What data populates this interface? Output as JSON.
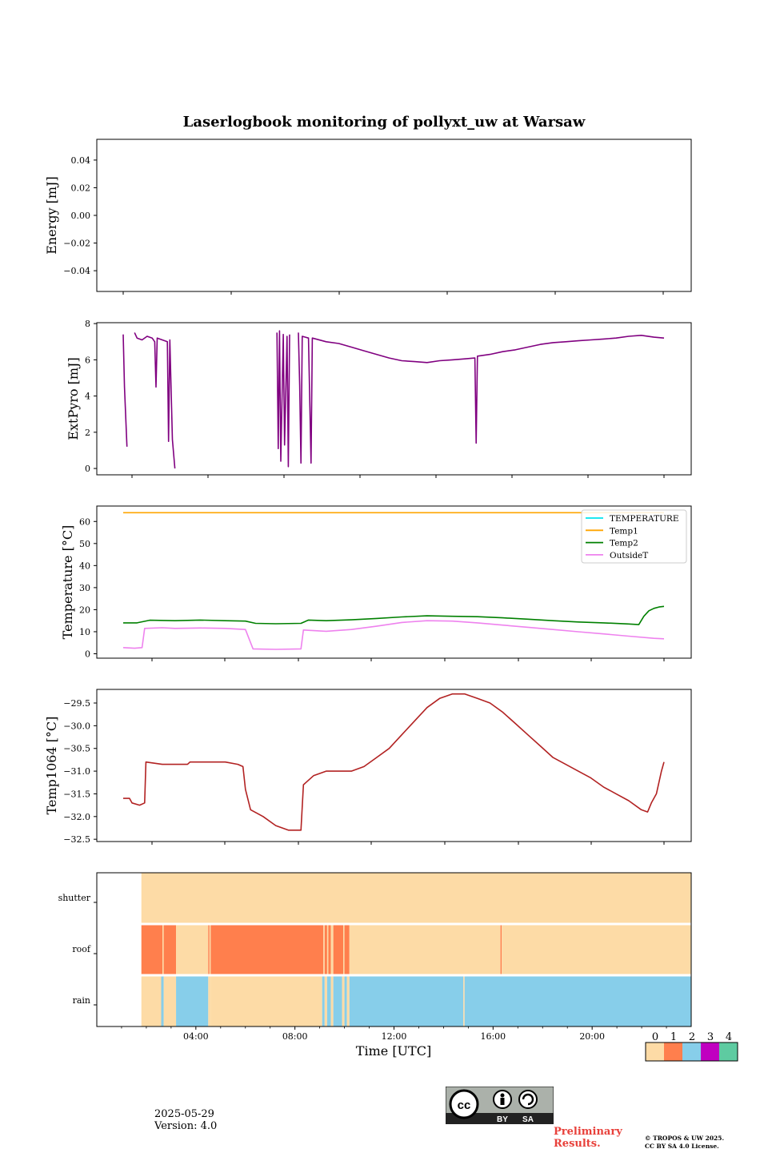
{
  "title": "Laserlogbook monitoring of pollyxt_uw at Warsaw",
  "xlabel": "Time [UTC]",
  "footer": {
    "date": "2025-05-29",
    "version": "Version: 4.0",
    "preliminary": "Preliminary\nResults.",
    "copyright_line1": "© TROPOS & UW 2025.",
    "copyright_line2": "CC BY SA 4.0 License.",
    "license_badge": {
      "left": "BY",
      "right": "SA"
    }
  },
  "chart_data": [
    {
      "id": "energy",
      "type": "line",
      "ylabel": "Energy [mJ]",
      "ylim": [
        -0.055,
        0.055
      ],
      "yticks": [
        0.04,
        0.02,
        0.0,
        -0.02,
        -0.04
      ],
      "ytick_labels": [
        "0.04",
        "0.02",
        "0.00",
        "−0.02",
        "−0.04"
      ],
      "series": []
    },
    {
      "id": "extpyro",
      "type": "line",
      "ylabel": "ExtPyro [mJ]",
      "ylim": [
        -0.35,
        8.05
      ],
      "yticks": [
        0,
        2,
        4,
        6,
        8
      ],
      "ytick_labels": [
        "0",
        "2",
        "4",
        "6",
        "8"
      ],
      "series": [
        {
          "color": "#800080",
          "points": [
            [
              0.95,
              7.4
            ],
            [
              1.0,
              4.5
            ],
            [
              1.1,
              1.2
            ],
            [
              null,
              null
            ],
            [
              1.4,
              7.5
            ],
            [
              1.5,
              7.2
            ],
            [
              1.7,
              7.1
            ],
            [
              1.9,
              7.3
            ],
            [
              2.1,
              7.2
            ],
            [
              2.2,
              7.0
            ],
            [
              2.25,
              4.5
            ],
            [
              2.3,
              7.2
            ],
            [
              2.5,
              7.1
            ],
            [
              2.7,
              7.0
            ],
            [
              2.75,
              1.5
            ],
            [
              2.8,
              7.1
            ],
            [
              2.9,
              1.6
            ],
            [
              3.0,
              0.0
            ],
            [
              null,
              null
            ],
            [
              7.05,
              7.5
            ],
            [
              7.1,
              1.1
            ],
            [
              7.15,
              7.6
            ],
            [
              7.2,
              0.4
            ],
            [
              7.3,
              7.4
            ],
            [
              7.35,
              1.3
            ],
            [
              7.45,
              7.3
            ],
            [
              7.5,
              0.1
            ],
            [
              7.55,
              7.4
            ],
            [
              null,
              null
            ],
            [
              7.9,
              7.5
            ],
            [
              7.95,
              4.6
            ],
            [
              8.0,
              0.3
            ],
            [
              8.05,
              7.3
            ],
            [
              8.3,
              7.2
            ],
            [
              8.4,
              0.3
            ],
            [
              8.45,
              7.2
            ],
            [
              9.0,
              7.0
            ],
            [
              9.5,
              6.9
            ],
            [
              10.0,
              6.7
            ],
            [
              10.5,
              6.5
            ],
            [
              11.0,
              6.3
            ],
            [
              11.5,
              6.1
            ],
            [
              12.0,
              5.95
            ],
            [
              12.5,
              5.9
            ],
            [
              13.0,
              5.85
            ],
            [
              13.5,
              5.95
            ],
            [
              14.0,
              6.0
            ],
            [
              14.5,
              6.05
            ],
            [
              14.9,
              6.1
            ],
            [
              14.95,
              1.4
            ],
            [
              15.0,
              6.2
            ],
            [
              15.5,
              6.3
            ],
            [
              16.0,
              6.45
            ],
            [
              16.5,
              6.55
            ],
            [
              17.0,
              6.7
            ],
            [
              17.5,
              6.85
            ],
            [
              18.0,
              6.95
            ],
            [
              18.5,
              7.0
            ],
            [
              19.0,
              7.05
            ],
            [
              19.5,
              7.1
            ],
            [
              20.0,
              7.15
            ],
            [
              20.5,
              7.2
            ],
            [
              21.0,
              7.3
            ],
            [
              21.5,
              7.35
            ],
            [
              22.0,
              7.25
            ],
            [
              22.4,
              7.2
            ]
          ]
        }
      ]
    },
    {
      "id": "temperature",
      "type": "line",
      "ylabel": "Temperature [°C]",
      "ylim": [
        -2,
        67
      ],
      "yticks": [
        0,
        10,
        20,
        30,
        40,
        50,
        60
      ],
      "ytick_labels": [
        "0",
        "10",
        "20",
        "30",
        "40",
        "50",
        "60"
      ],
      "legend": {
        "position": "top-right",
        "entries": [
          "TEMPERATURE",
          "Temp1",
          "Temp2",
          "OutsideT"
        ]
      },
      "series": [
        {
          "name": "TEMPERATURE",
          "color": "#00e5ee",
          "points": []
        },
        {
          "name": "Temp1",
          "color": "#ffa500",
          "points": [
            [
              0.95,
              64
            ],
            [
              22.4,
              64
            ]
          ]
        },
        {
          "name": "Temp2",
          "color": "#008000",
          "points": [
            [
              0.95,
              14.0
            ],
            [
              1.5,
              14.0
            ],
            [
              2.0,
              15.2
            ],
            [
              3.0,
              15.0
            ],
            [
              4.0,
              15.3
            ],
            [
              5.0,
              15.0
            ],
            [
              5.8,
              14.8
            ],
            [
              6.2,
              13.8
            ],
            [
              7.0,
              13.6
            ],
            [
              8.0,
              13.8
            ],
            [
              8.3,
              15.3
            ],
            [
              9.0,
              15.0
            ],
            [
              10.0,
              15.4
            ],
            [
              11.0,
              16.0
            ],
            [
              12.0,
              16.7
            ],
            [
              13.0,
              17.2
            ],
            [
              14.0,
              17.0
            ],
            [
              15.0,
              16.8
            ],
            [
              16.0,
              16.3
            ],
            [
              17.0,
              15.7
            ],
            [
              18.0,
              15.0
            ],
            [
              19.0,
              14.4
            ],
            [
              20.0,
              14.0
            ],
            [
              21.0,
              13.5
            ],
            [
              21.4,
              13.2
            ],
            [
              21.6,
              17.0
            ],
            [
              21.8,
              19.5
            ],
            [
              22.0,
              20.6
            ],
            [
              22.2,
              21.2
            ],
            [
              22.4,
              21.5
            ]
          ]
        },
        {
          "name": "OutsideT",
          "color": "#ee82ee",
          "points": [
            [
              0.95,
              2.8
            ],
            [
              1.4,
              2.5
            ],
            [
              1.7,
              2.8
            ],
            [
              1.8,
              11.5
            ],
            [
              2.5,
              11.8
            ],
            [
              3.0,
              11.5
            ],
            [
              4.0,
              11.7
            ],
            [
              5.0,
              11.5
            ],
            [
              5.8,
              11.0
            ],
            [
              6.1,
              2.2
            ],
            [
              7.0,
              2.0
            ],
            [
              8.0,
              2.2
            ],
            [
              8.1,
              10.8
            ],
            [
              9.0,
              10.2
            ],
            [
              10.0,
              11.0
            ],
            [
              11.0,
              12.5
            ],
            [
              12.0,
              14.2
            ],
            [
              13.0,
              15.0
            ],
            [
              14.0,
              14.8
            ],
            [
              15.0,
              14.0
            ],
            [
              16.0,
              13.0
            ],
            [
              17.0,
              12.0
            ],
            [
              18.0,
              11.0
            ],
            [
              19.0,
              10.0
            ],
            [
              20.0,
              9.0
            ],
            [
              21.0,
              8.0
            ],
            [
              22.0,
              7.0
            ],
            [
              22.4,
              6.8
            ]
          ]
        }
      ]
    },
    {
      "id": "temp1064",
      "type": "line",
      "ylabel": "Temp1064 [°C]",
      "ylim": [
        -32.55,
        -29.2
      ],
      "yticks": [
        -29.5,
        -30.0,
        -30.5,
        -31.0,
        -31.5,
        -32.0,
        -32.5
      ],
      "ytick_labels": [
        "−29.5",
        "−30.0",
        "−30.5",
        "−31.0",
        "−31.5",
        "−32.0",
        "−32.5"
      ],
      "series": [
        {
          "color": "#b22222",
          "points": [
            [
              0.95,
              -31.6
            ],
            [
              1.2,
              -31.6
            ],
            [
              1.3,
              -31.7
            ],
            [
              1.6,
              -31.75
            ],
            [
              1.8,
              -31.7
            ],
            [
              1.85,
              -30.8
            ],
            [
              2.5,
              -30.85
            ],
            [
              3.0,
              -30.85
            ],
            [
              3.5,
              -30.85
            ],
            [
              3.6,
              -30.8
            ],
            [
              4.5,
              -30.8
            ],
            [
              5.0,
              -30.8
            ],
            [
              5.5,
              -30.85
            ],
            [
              5.7,
              -30.9
            ],
            [
              5.8,
              -31.4
            ],
            [
              6.0,
              -31.85
            ],
            [
              6.5,
              -32.0
            ],
            [
              7.0,
              -32.2
            ],
            [
              7.5,
              -32.3
            ],
            [
              8.0,
              -32.3
            ],
            [
              8.1,
              -31.3
            ],
            [
              8.5,
              -31.1
            ],
            [
              9.0,
              -31.0
            ],
            [
              9.5,
              -31.0
            ],
            [
              10.0,
              -31.0
            ],
            [
              10.5,
              -30.9
            ],
            [
              11.0,
              -30.7
            ],
            [
              11.5,
              -30.5
            ],
            [
              12.0,
              -30.2
            ],
            [
              12.5,
              -29.9
            ],
            [
              13.0,
              -29.6
            ],
            [
              13.5,
              -29.4
            ],
            [
              14.0,
              -29.3
            ],
            [
              14.5,
              -29.3
            ],
            [
              15.0,
              -29.4
            ],
            [
              15.5,
              -29.5
            ],
            [
              16.0,
              -29.7
            ],
            [
              16.5,
              -29.95
            ],
            [
              17.0,
              -30.2
            ],
            [
              17.5,
              -30.45
            ],
            [
              18.0,
              -30.7
            ],
            [
              18.5,
              -30.85
            ],
            [
              19.0,
              -31.0
            ],
            [
              19.5,
              -31.15
            ],
            [
              20.0,
              -31.35
            ],
            [
              20.5,
              -31.5
            ],
            [
              21.0,
              -31.65
            ],
            [
              21.5,
              -31.85
            ],
            [
              21.75,
              -31.9
            ],
            [
              21.9,
              -31.7
            ],
            [
              22.1,
              -31.5
            ],
            [
              22.3,
              -31.0
            ],
            [
              22.4,
              -30.8
            ]
          ]
        }
      ]
    },
    {
      "id": "status",
      "type": "heatmap",
      "rows": [
        "shutter",
        "roof",
        "rain"
      ],
      "xlim": [
        0,
        24
      ],
      "xticks": [
        4,
        8,
        12,
        16,
        20
      ],
      "xtick_labels": [
        "04:00",
        "08:00",
        "12:00",
        "16:00",
        "20:00"
      ],
      "segments": {
        "shutter": [
          [
            1.8,
            24,
            0
          ]
        ],
        "roof": [
          [
            1.8,
            2.65,
            1
          ],
          [
            2.65,
            2.7,
            0
          ],
          [
            2.7,
            3.2,
            1
          ],
          [
            3.2,
            4.5,
            0
          ],
          [
            4.5,
            4.55,
            1
          ],
          [
            4.55,
            4.6,
            0
          ],
          [
            4.6,
            9.15,
            1
          ],
          [
            9.15,
            9.2,
            0
          ],
          [
            9.2,
            9.3,
            1
          ],
          [
            9.3,
            9.35,
            0
          ],
          [
            9.35,
            9.45,
            1
          ],
          [
            9.45,
            9.55,
            0
          ],
          [
            9.55,
            9.95,
            1
          ],
          [
            9.95,
            10.0,
            0
          ],
          [
            10.0,
            10.2,
            1
          ],
          [
            10.2,
            16.3,
            0
          ],
          [
            16.3,
            16.35,
            1
          ],
          [
            16.35,
            24,
            0
          ]
        ],
        "rain": [
          [
            1.8,
            2.6,
            0
          ],
          [
            2.6,
            2.7,
            2
          ],
          [
            2.7,
            3.2,
            0
          ],
          [
            3.2,
            4.5,
            2
          ],
          [
            4.5,
            4.6,
            0
          ],
          [
            4.6,
            9.1,
            0
          ],
          [
            9.1,
            9.2,
            2
          ],
          [
            9.2,
            9.3,
            0
          ],
          [
            9.3,
            9.45,
            2
          ],
          [
            9.45,
            9.55,
            0
          ],
          [
            9.55,
            9.9,
            2
          ],
          [
            9.9,
            10.0,
            0
          ],
          [
            10.0,
            10.1,
            2
          ],
          [
            10.1,
            10.2,
            0
          ],
          [
            10.2,
            14.8,
            2
          ],
          [
            14.8,
            14.85,
            0
          ],
          [
            14.85,
            24,
            2
          ]
        ]
      },
      "colorbar": {
        "values": [
          0,
          1,
          2,
          3,
          4
        ],
        "labels": [
          "0",
          "1",
          "2",
          "3",
          "4"
        ],
        "colors": [
          "#fddba6",
          "#ff7f4d",
          "#87ceea",
          "#c000c0",
          "#5ecba1"
        ]
      }
    }
  ]
}
